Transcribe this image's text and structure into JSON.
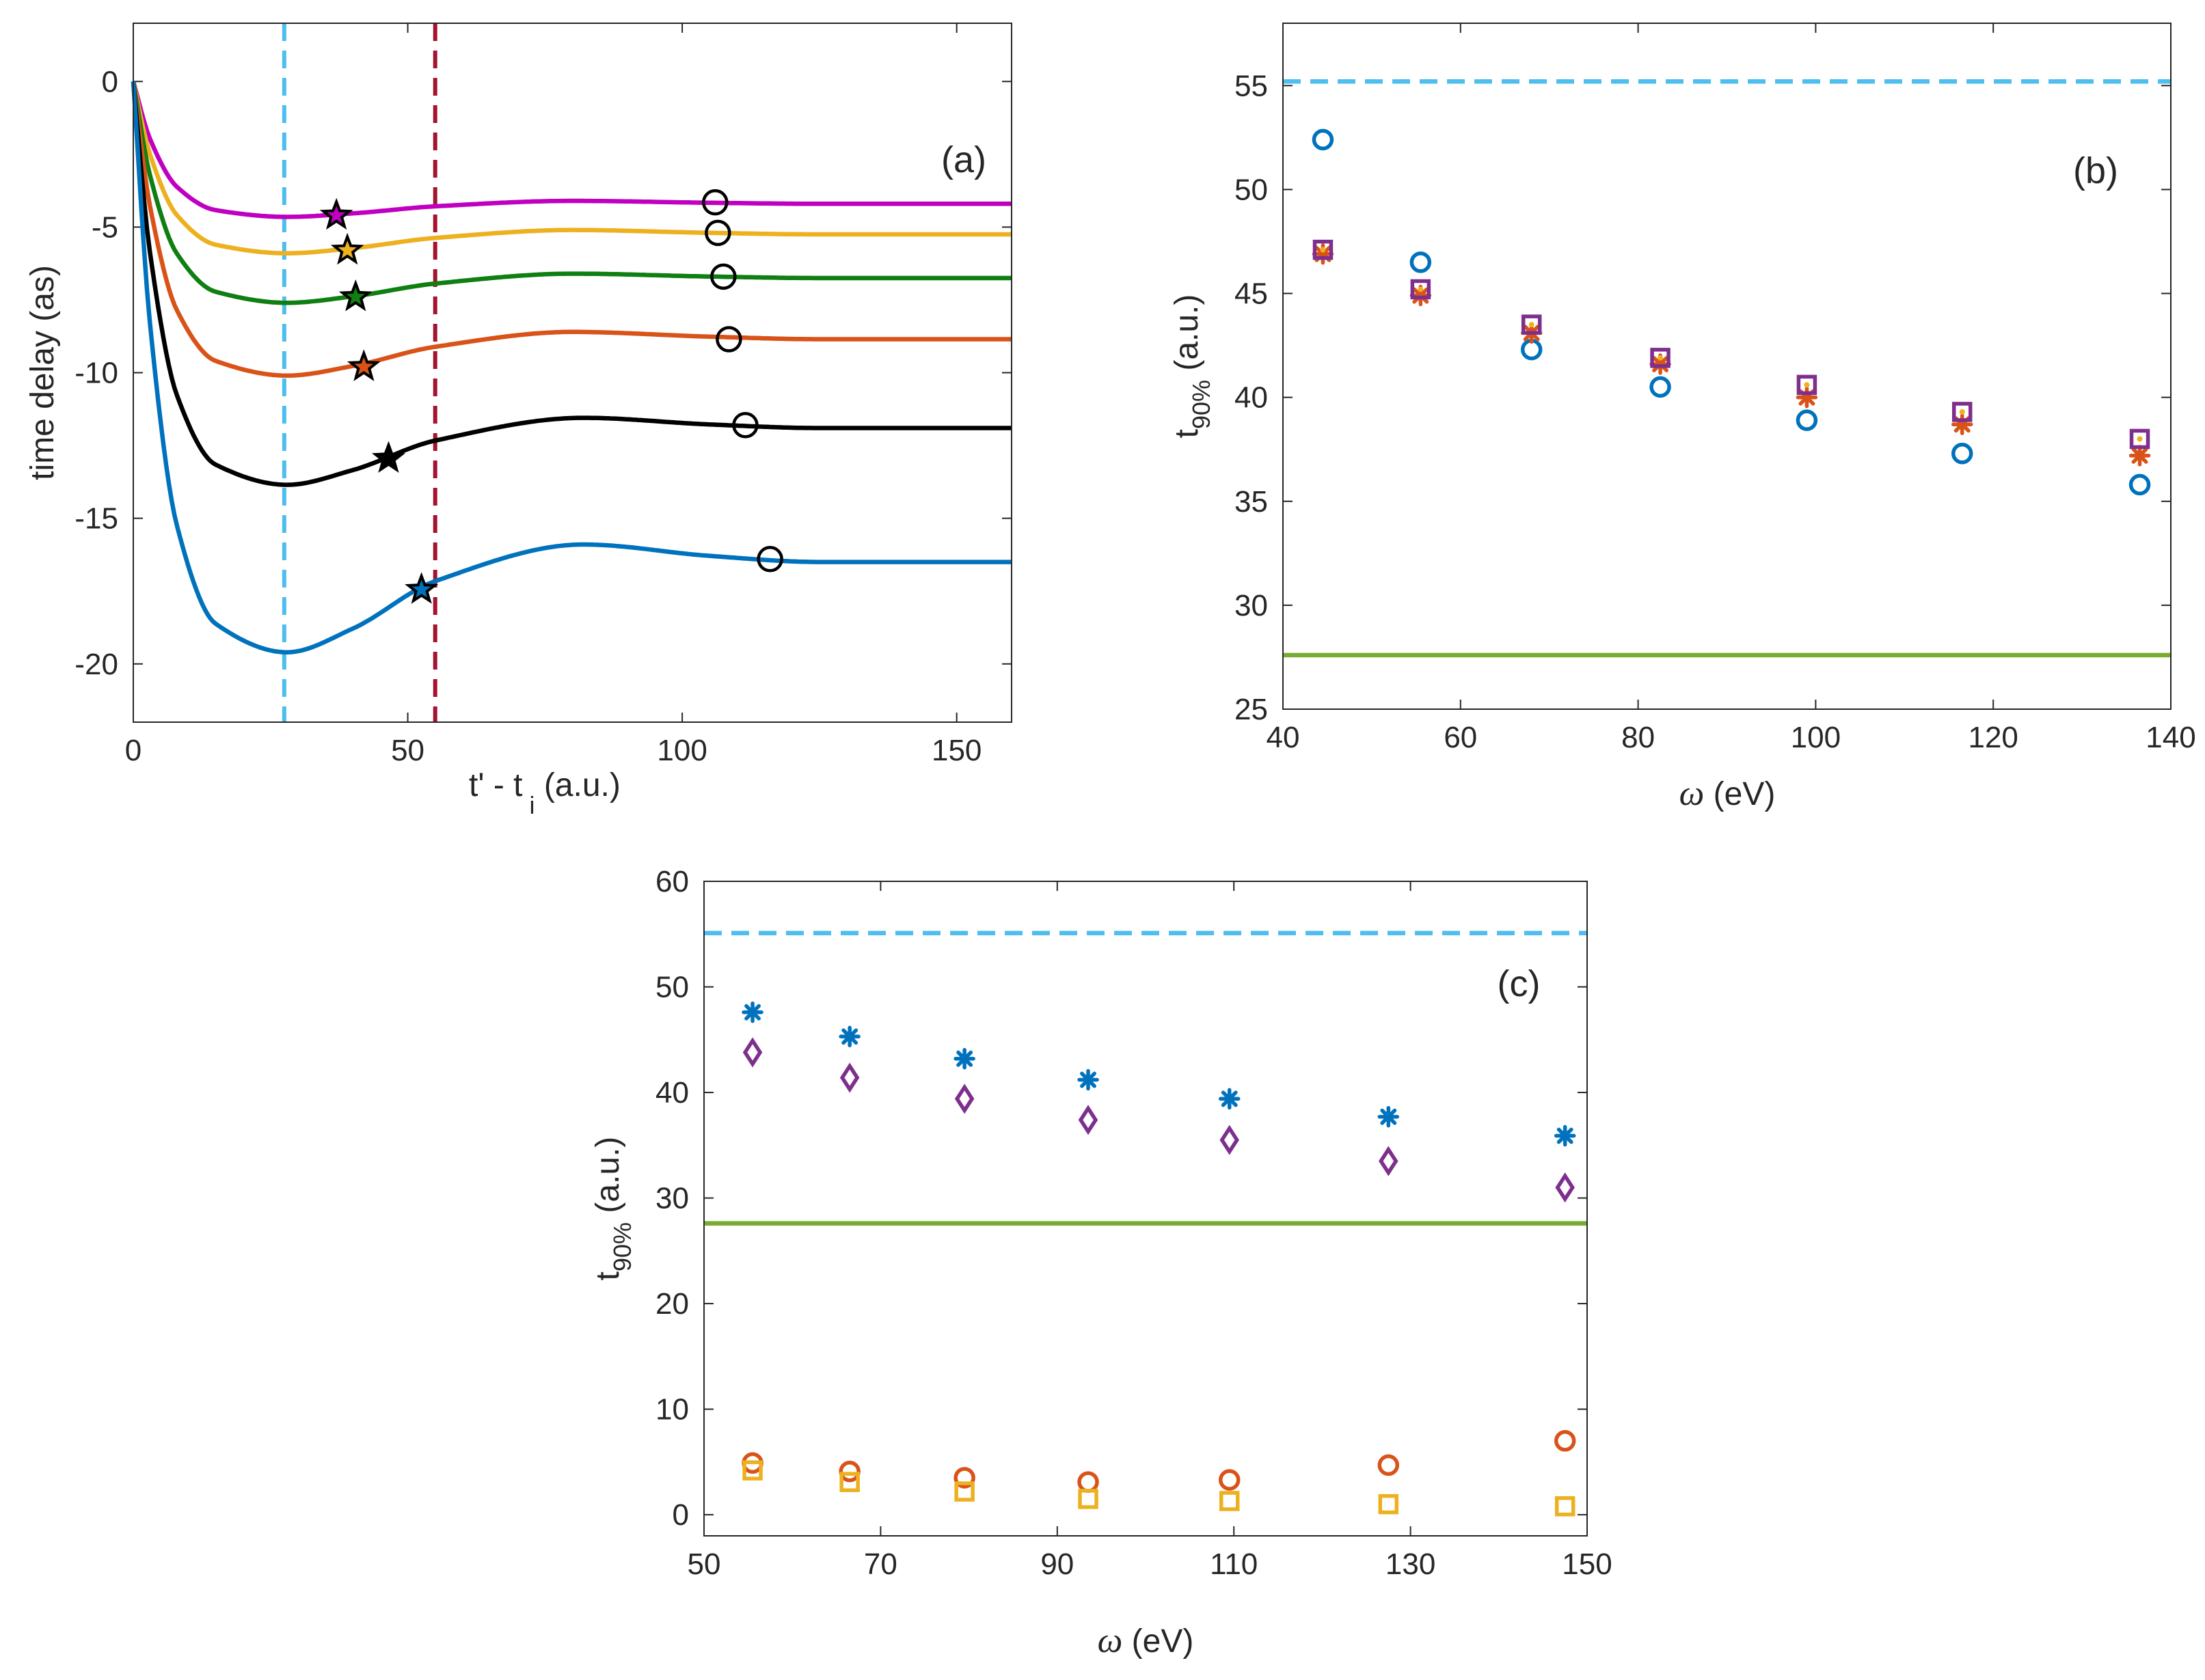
{
  "chart_data": [
    {
      "id": "a",
      "type": "line",
      "panel_label": "(a)",
      "xlabel_main": "t' - t",
      "xlabel_sub": "i",
      "xlabel_unit": " (a.u.)",
      "ylabel": "time delay (as)",
      "xlim": [
        0,
        160
      ],
      "ylim": [
        -22,
        2
      ],
      "xticks": [
        0,
        50,
        100,
        150
      ],
      "xtick_labels": [
        "0",
        "50",
        "100",
        "150"
      ],
      "yticks": [
        0,
        -5,
        -10,
        -15,
        -20
      ],
      "ytick_labels": [
        "0",
        "-5",
        "-10",
        "-15",
        "-20"
      ],
      "vlines": [
        {
          "x": 27.5,
          "color": "#4DBEEE",
          "style": "dashed"
        },
        {
          "x": 55,
          "color": "#A2142F",
          "style": "dashed"
        }
      ],
      "series": [
        {
          "name": "curve-1",
          "color": "#C000C0",
          "final": -4.2,
          "min_val": -4.65,
          "min_t": 28,
          "peak_val": -4.1,
          "peak_t": 80,
          "star": [
            37,
            -4.6
          ],
          "circle": [
            106,
            -4.15
          ]
        },
        {
          "name": "curve-2",
          "color": "#EDB120",
          "final": -5.25,
          "min_val": -5.9,
          "min_t": 28,
          "peak_val": -5.1,
          "peak_t": 80,
          "star": [
            39,
            -5.8
          ],
          "circle": [
            106.5,
            -5.2
          ]
        },
        {
          "name": "curve-3",
          "color": "#0F7F12",
          "final": -6.75,
          "min_val": -7.6,
          "min_t": 28,
          "peak_val": -6.6,
          "peak_t": 80,
          "star": [
            40.5,
            -7.4
          ],
          "circle": [
            107.5,
            -6.7
          ]
        },
        {
          "name": "curve-4",
          "color": "#D95319",
          "final": -8.85,
          "min_val": -10.1,
          "min_t": 28,
          "peak_val": -8.6,
          "peak_t": 80,
          "star": [
            42,
            -9.8
          ],
          "circle": [
            108.5,
            -8.85
          ]
        },
        {
          "name": "curve-5",
          "color": "#000000",
          "final": -11.9,
          "min_val": -13.85,
          "min_t": 28,
          "peak_val": -11.55,
          "peak_t": 82,
          "star": [
            46.5,
            -12.95
          ],
          "circle": [
            111.5,
            -11.8
          ]
        },
        {
          "name": "curve-6",
          "color": "#0072BD",
          "final": -16.5,
          "min_val": -19.6,
          "min_t": 28,
          "peak_val": -15.9,
          "peak_t": 82,
          "star": [
            52.5,
            -17.45
          ],
          "circle": [
            116,
            -16.4
          ]
        }
      ]
    },
    {
      "id": "b",
      "type": "scatter",
      "panel_label": "(b)",
      "xlabel_sym": "ω",
      "xlabel_unit": " (eV)",
      "ylabel_main": "t",
      "ylabel_sub": "90%",
      "ylabel_unit": " (a.u.)",
      "xlim": [
        40,
        140
      ],
      "ylim": [
        25,
        58
      ],
      "xticks": [
        40,
        60,
        80,
        100,
        120,
        140
      ],
      "xtick_labels": [
        "40",
        "60",
        "80",
        "100",
        "120",
        "140"
      ],
      "yticks": [
        25,
        30,
        35,
        40,
        45,
        50,
        55
      ],
      "ytick_labels": [
        "25",
        "30",
        "35",
        "40",
        "45",
        "50",
        "55"
      ],
      "hlines": [
        {
          "y": 55.2,
          "color": "#4DBEEE",
          "style": "dashed"
        },
        {
          "y": 27.6,
          "color": "#77AC30",
          "style": "solid"
        }
      ],
      "x": [
        44.5,
        55.5,
        68,
        82.5,
        99,
        116.5,
        136.5
      ],
      "series": [
        {
          "name": "circles",
          "marker": "circle",
          "color": "#0072BD",
          "values": [
            52.4,
            46.5,
            42.3,
            40.5,
            38.9,
            37.3,
            35.8
          ]
        },
        {
          "name": "asterisks",
          "marker": "asterisk",
          "color": "#D95319",
          "values": [
            46.9,
            44.9,
            43.1,
            41.6,
            40.0,
            38.7,
            37.2
          ]
        },
        {
          "name": "squares",
          "marker": "square",
          "color": "#7E2F8E",
          "values": [
            47.1,
            45.2,
            43.5,
            41.9,
            40.6,
            39.3,
            38.0
          ]
        },
        {
          "name": "dots",
          "marker": "dot",
          "color": "#EDB120",
          "values": [
            47.1,
            45.2,
            43.5,
            41.9,
            40.6,
            39.3,
            38.0
          ]
        }
      ]
    },
    {
      "id": "c",
      "type": "scatter",
      "panel_label": "(c)",
      "xlabel_sym": "ω",
      "xlabel_unit": " (eV)",
      "ylabel_main": "t",
      "ylabel_sub": "90%",
      "ylabel_unit": " (a.u.)",
      "xlim": [
        50,
        150
      ],
      "ylim": [
        -2,
        60
      ],
      "xticks": [
        50,
        70,
        90,
        110,
        130,
        150
      ],
      "xtick_labels": [
        "50",
        "70",
        "90",
        "110",
        "130",
        "150"
      ],
      "yticks": [
        0,
        10,
        20,
        30,
        40,
        50,
        60
      ],
      "ytick_labels": [
        "0",
        "10",
        "20",
        "30",
        "40",
        "50",
        "60"
      ],
      "hlines": [
        {
          "y": 55.1,
          "color": "#4DBEEE",
          "style": "dashed"
        },
        {
          "y": 27.6,
          "color": "#77AC30",
          "style": "solid"
        }
      ],
      "x": [
        55.5,
        66.5,
        79.5,
        93.5,
        109.5,
        127.5,
        147.5
      ],
      "series": [
        {
          "name": "asterisks",
          "marker": "asterisk",
          "color": "#0072BD",
          "values": [
            47.6,
            45.3,
            43.2,
            41.2,
            39.4,
            37.7,
            35.9
          ]
        },
        {
          "name": "diamonds",
          "marker": "diamond",
          "color": "#7E2F8E",
          "values": [
            43.8,
            41.4,
            39.4,
            37.4,
            35.5,
            33.5,
            31.0
          ]
        },
        {
          "name": "circles",
          "marker": "circle",
          "color": "#D95319",
          "values": [
            4.9,
            4.1,
            3.5,
            3.1,
            3.3,
            4.7,
            7.0
          ]
        },
        {
          "name": "squares",
          "marker": "square",
          "color": "#EDB120",
          "values": [
            4.2,
            3.1,
            2.2,
            1.5,
            1.3,
            1.0,
            0.8
          ]
        }
      ]
    }
  ]
}
